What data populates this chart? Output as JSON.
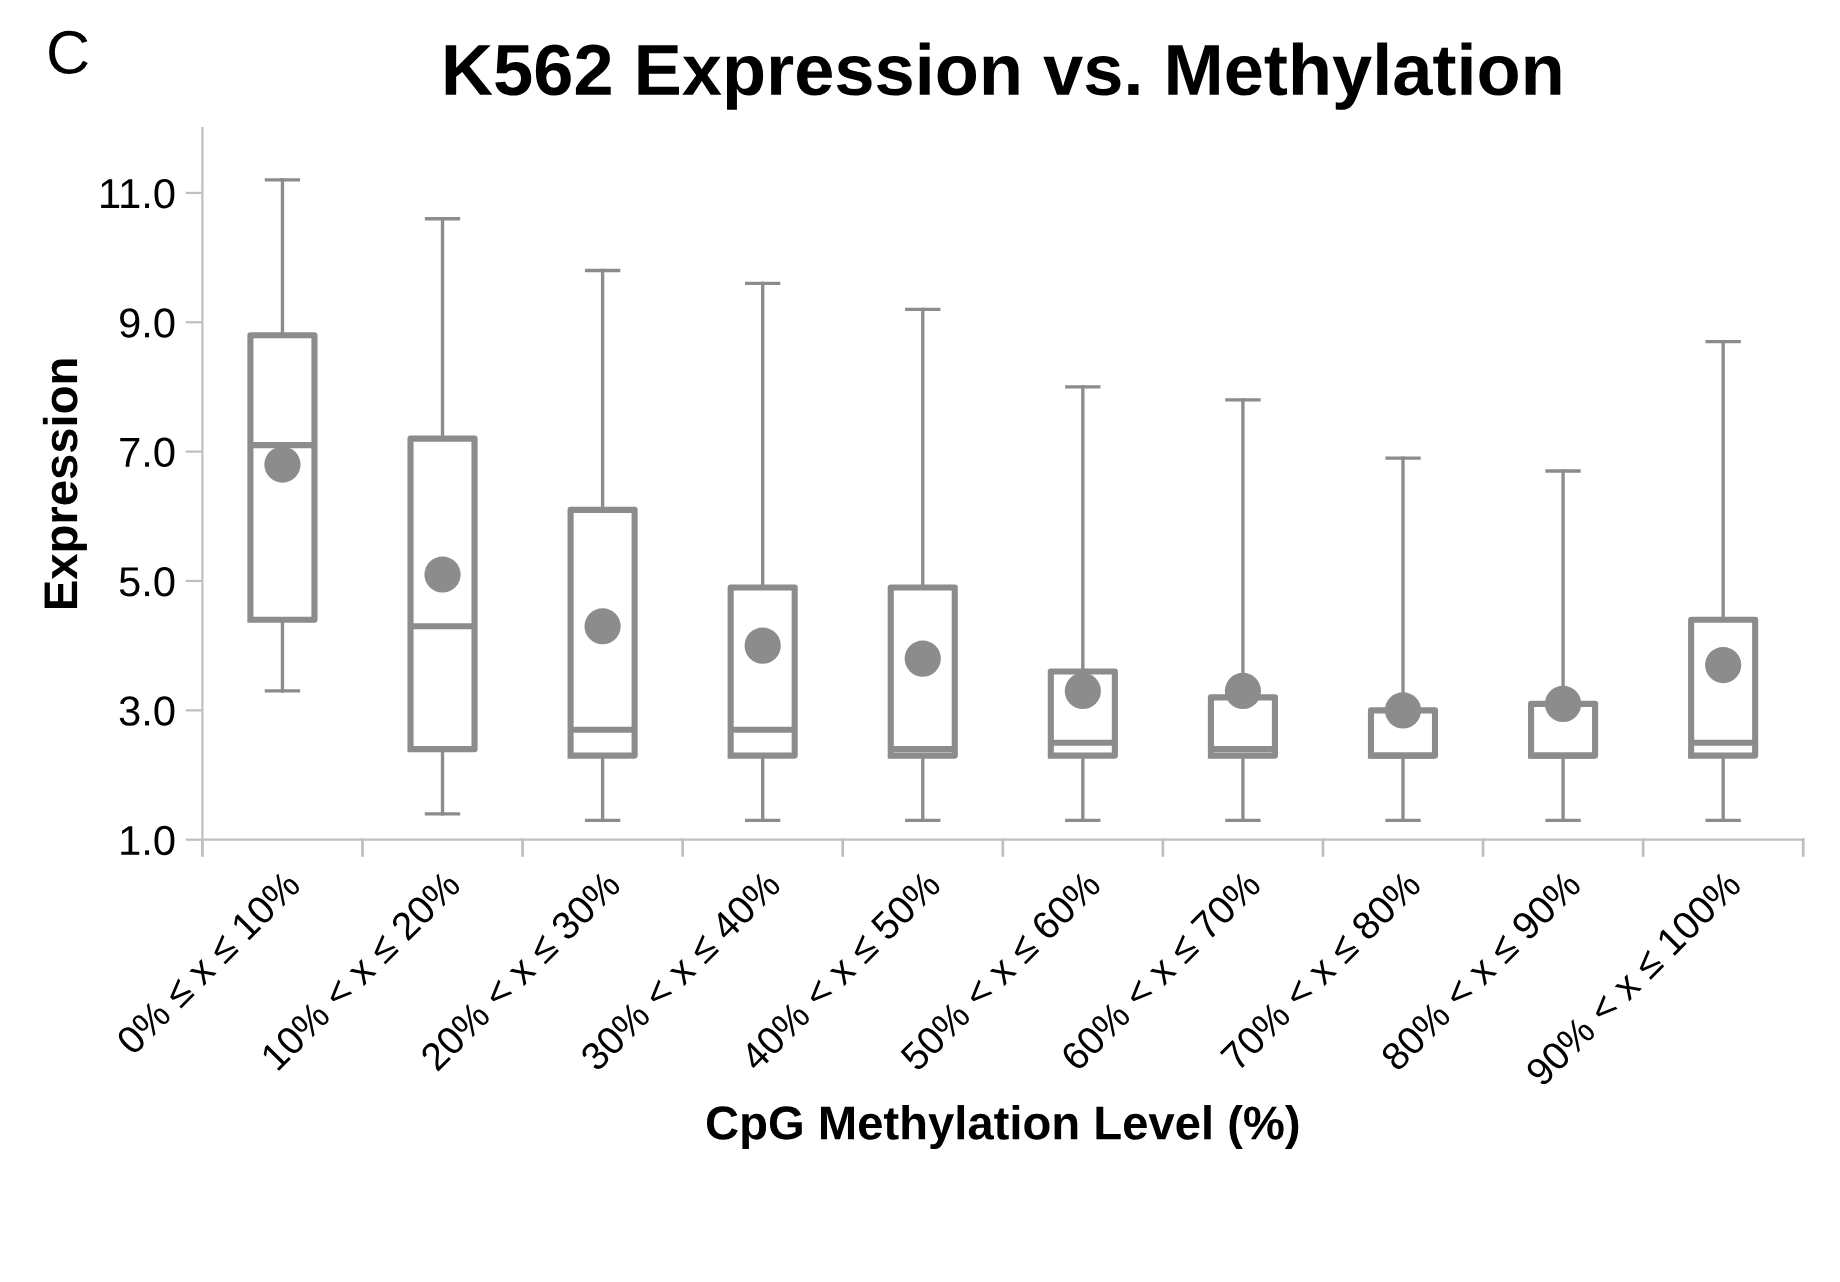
{
  "chart_data": {
    "type": "box",
    "title": "K562 Expression vs. Methylation",
    "xlabel": "CpG Methylation Level (%)",
    "ylabel": "Expression",
    "annotations": [
      "C"
    ],
    "categories": [
      "0% ≤ x ≤ 10%",
      "10% < x ≤ 20%",
      "20% < x ≤ 30%",
      "30% < x ≤ 40%",
      "40% < x ≤ 50%",
      "50% < x ≤ 60%",
      "60% < x ≤ 70%",
      "70% < x ≤ 80%",
      "80% < x ≤ 90%",
      "90% < x ≤ 100%"
    ],
    "color": "#8c8c8c",
    "boxes": [
      {
        "low": 3.3,
        "q1": 4.4,
        "median": 7.1,
        "q3": 8.8,
        "high": 11.2,
        "mean": 6.8
      },
      {
        "low": 1.4,
        "q1": 2.4,
        "median": 4.3,
        "q3": 7.2,
        "high": 10.6,
        "mean": 5.1
      },
      {
        "low": 1.3,
        "q1": 2.3,
        "median": 2.7,
        "q3": 6.1,
        "high": 9.8,
        "mean": 4.3
      },
      {
        "low": 1.3,
        "q1": 2.3,
        "median": 2.7,
        "q3": 4.9,
        "high": 9.6,
        "mean": 4.0
      },
      {
        "low": 1.3,
        "q1": 2.3,
        "median": 2.4,
        "q3": 4.9,
        "high": 9.2,
        "mean": 3.8
      },
      {
        "low": 1.3,
        "q1": 2.3,
        "median": 2.5,
        "q3": 3.6,
        "high": 8.0,
        "mean": 3.3
      },
      {
        "low": 1.3,
        "q1": 2.3,
        "median": 2.4,
        "q3": 3.2,
        "high": 7.8,
        "mean": 3.3
      },
      {
        "low": 1.3,
        "q1": 2.3,
        "median": 2.3,
        "q3": 3.0,
        "high": 6.9,
        "mean": 3.0
      },
      {
        "low": 1.3,
        "q1": 2.3,
        "median": 2.3,
        "q3": 3.1,
        "high": 6.7,
        "mean": 3.1
      },
      {
        "low": 1.3,
        "q1": 2.3,
        "median": 2.5,
        "q3": 4.4,
        "high": 8.7,
        "mean": 3.7
      }
    ],
    "ylim": [
      1,
      12
    ],
    "yticks": [
      {
        "value": 1,
        "label": "1.0"
      },
      {
        "value": 3,
        "label": "3.0"
      },
      {
        "value": 5,
        "label": "5.0"
      },
      {
        "value": 7,
        "label": "7.0"
      },
      {
        "value": 9,
        "label": "9.0"
      },
      {
        "value": 11,
        "label": "11.0"
      }
    ],
    "grid": false,
    "legend": false,
    "marker": "circle"
  }
}
